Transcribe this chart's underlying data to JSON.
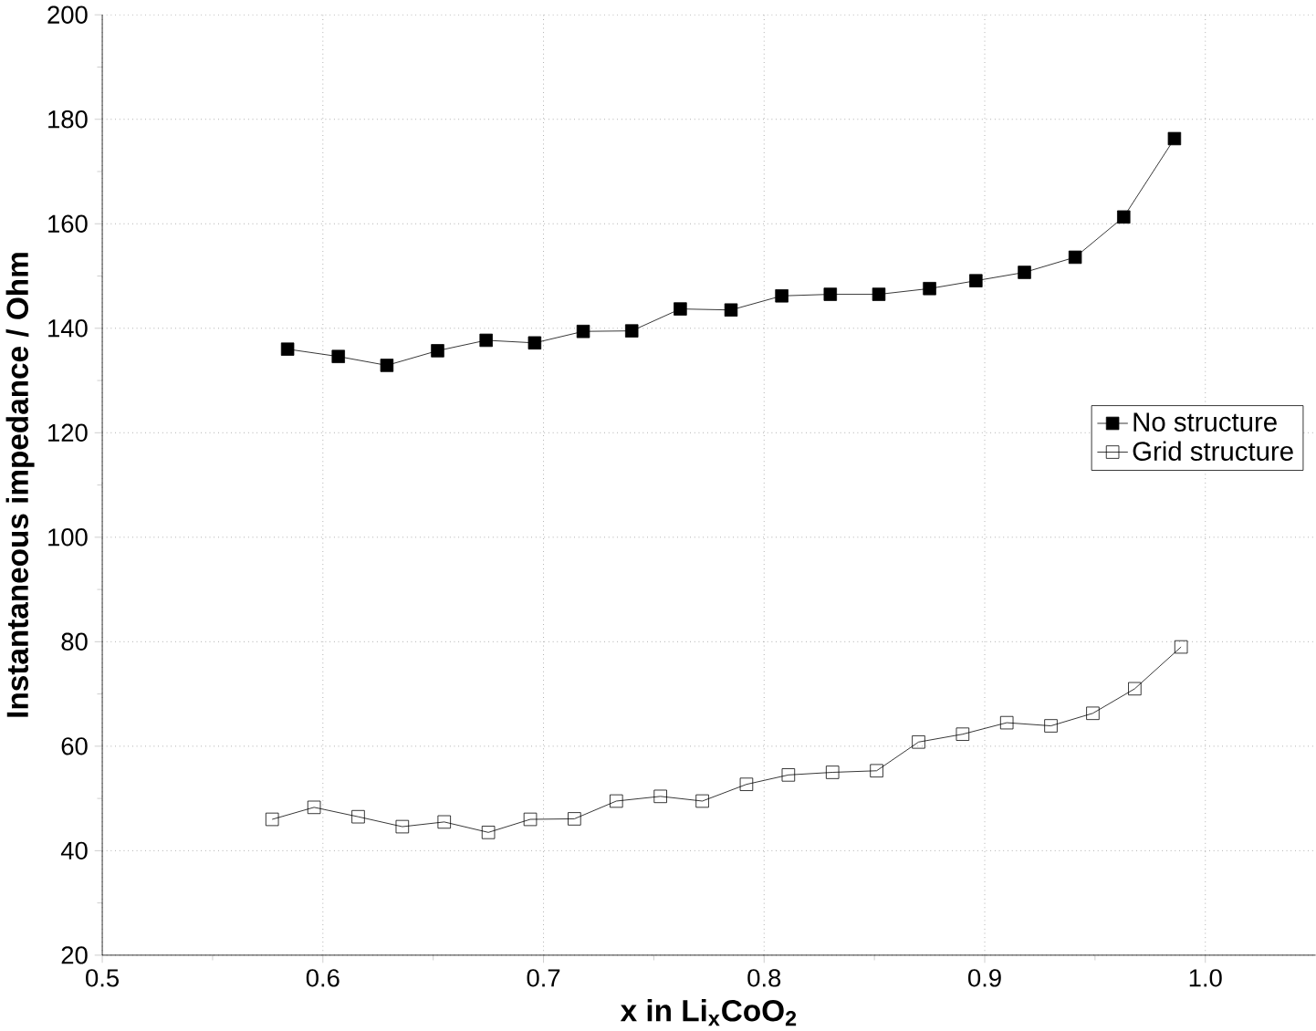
{
  "chart_data": {
    "type": "line",
    "xlabel": "x in Li$_{x}$CoO$_{2}$",
    "ylabel": "Instantaneous impedance / Ohm",
    "xlim": [
      0.5,
      1.05
    ],
    "ylim": [
      20,
      200
    ],
    "xticks": [
      {
        "value": 0.5,
        "label": "0.5"
      },
      {
        "value": 0.6,
        "label": "0.6"
      },
      {
        "value": 0.7,
        "label": "0.7"
      },
      {
        "value": 0.8,
        "label": "0.8"
      },
      {
        "value": 0.9,
        "label": "0.9"
      },
      {
        "value": 1.0,
        "label": "1.0"
      }
    ],
    "yticks": [
      20,
      40,
      60,
      80,
      100,
      120,
      140,
      160,
      180,
      200
    ],
    "grid": true,
    "legend": "right",
    "series": [
      {
        "name": "No structure",
        "color": "#000000",
        "marker": "square",
        "x": [
          0.584,
          0.607,
          0.629,
          0.652,
          0.674,
          0.696,
          0.718,
          0.74,
          0.762,
          0.785,
          0.808,
          0.83,
          0.852,
          0.875,
          0.896,
          0.918,
          0.941,
          0.963,
          0.986
        ],
        "values": [
          136.0,
          134.6,
          132.9,
          135.7,
          137.7,
          137.2,
          139.4,
          139.5,
          143.7,
          143.5,
          146.2,
          146.5,
          146.5,
          147.6,
          149.1,
          150.7,
          153.6,
          161.3,
          176.3
        ]
      },
      {
        "name": "Grid structure",
        "color": "#000000",
        "marker": "square*",
        "x": [
          0.577,
          0.596,
          0.616,
          0.636,
          0.655,
          0.675,
          0.694,
          0.714,
          0.733,
          0.753,
          0.772,
          0.792,
          0.811,
          0.831,
          0.851,
          0.87,
          0.89,
          0.91,
          0.93,
          0.949,
          0.968,
          0.989
        ],
        "values": [
          46.0,
          48.3,
          46.5,
          44.6,
          45.5,
          43.5,
          46.0,
          46.1,
          49.5,
          50.4,
          49.5,
          52.7,
          54.5,
          55.0,
          55.3,
          60.8,
          62.3,
          64.5,
          63.9,
          66.3,
          71.0,
          79.0
        ]
      }
    ]
  }
}
